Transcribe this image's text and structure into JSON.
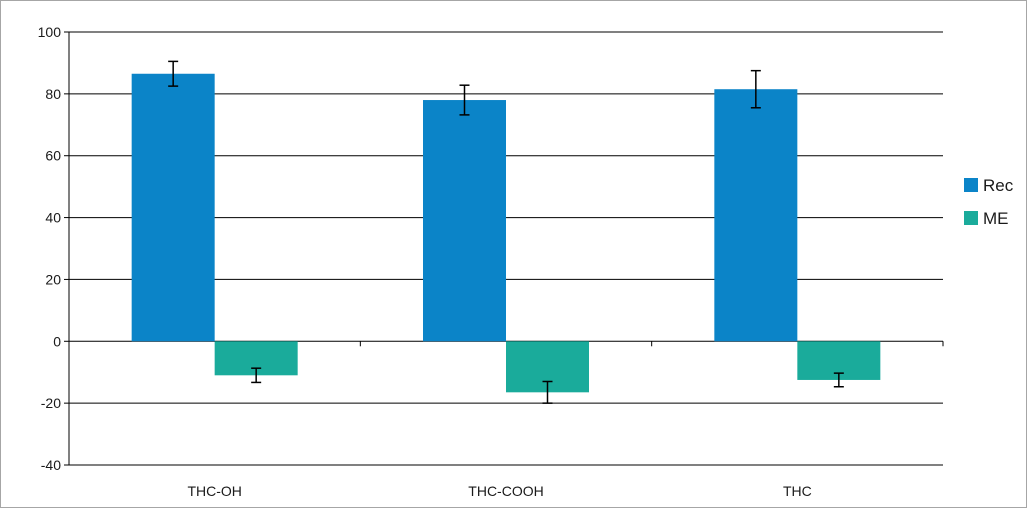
{
  "chart_data": {
    "type": "bar",
    "categories": [
      "THC-OH",
      "THC-COOH",
      "THC"
    ],
    "series": [
      {
        "name": "Rec",
        "values": [
          86.5,
          78,
          81.5
        ],
        "errors": [
          4,
          4.8,
          6
        ],
        "color": "#0b84c8"
      },
      {
        "name": "ME",
        "values": [
          -11,
          -16.5,
          -12.5
        ],
        "errors": [
          2.3,
          3.5,
          2.2
        ],
        "color": "#1aab9b"
      }
    ],
    "ylim": [
      -40,
      100
    ],
    "yticks": [
      100,
      80,
      60,
      40,
      20,
      0,
      -20,
      -40
    ],
    "grid": true,
    "legend_position": "right",
    "title": "",
    "xlabel": "",
    "ylabel": ""
  }
}
